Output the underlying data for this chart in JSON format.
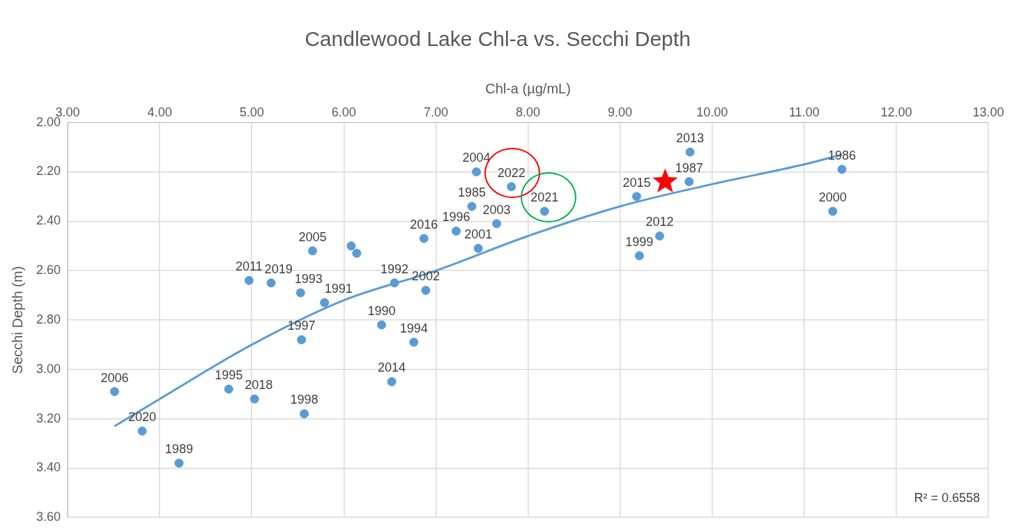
{
  "chart_data": {
    "type": "scatter",
    "title": "Candlewood Lake Chl-a vs. Secchi Depth",
    "xlabel": "Chl-a (µg/mL)",
    "ylabel": "Secchi Depth (m)",
    "xlim": [
      3,
      13
    ],
    "xticks": [
      {
        "value": 3,
        "label": "3.00"
      },
      {
        "value": 4,
        "label": "4.00"
      },
      {
        "value": 5,
        "label": "5.00"
      },
      {
        "value": 6,
        "label": "6.00"
      },
      {
        "value": 7,
        "label": "7.00"
      },
      {
        "value": 8,
        "label": "8.00"
      },
      {
        "value": 9,
        "label": "9.00"
      },
      {
        "value": 10,
        "label": "10.00"
      },
      {
        "value": 11,
        "label": "11.00"
      },
      {
        "value": 12,
        "label": "12.00"
      },
      {
        "value": 13,
        "label": "13.00"
      }
    ],
    "ylim": [
      3.6,
      2
    ],
    "yticks": [
      {
        "value": 2,
        "label": "2.00"
      },
      {
        "value": 2.2,
        "label": "2.20"
      },
      {
        "value": 2.4,
        "label": "2.40"
      },
      {
        "value": 2.6,
        "label": "2.60"
      },
      {
        "value": 2.8,
        "label": "2.80"
      },
      {
        "value": 3,
        "label": "3.00"
      },
      {
        "value": 3.2,
        "label": "3.20"
      },
      {
        "value": 3.4,
        "label": "3.40"
      },
      {
        "value": 3.6,
        "label": "3.60"
      }
    ],
    "grid": true,
    "marker": "circle",
    "annotations": [
      "R² = 0.6558",
      {
        "text": "2006",
        "x": 3.51,
        "y": 3.09
      },
      {
        "text": "2020",
        "x": 3.81,
        "y": 3.25
      },
      {
        "text": "1989",
        "x": 4.21,
        "y": 3.38
      },
      {
        "text": "1995",
        "x": 4.75,
        "y": 3.08
      },
      {
        "text": "2018",
        "x": 5.03,
        "y": 3.12
      },
      {
        "text": "1998",
        "x": 5.57,
        "y": 3.18
      },
      {
        "text": "1997",
        "x": 5.54,
        "y": 2.88
      },
      {
        "text": "2011",
        "x": 4.97,
        "y": 2.64
      },
      {
        "text": "2019",
        "x": 5.21,
        "y": 2.65
      },
      {
        "text": "1993",
        "x": 5.53,
        "y": 2.69
      },
      {
        "text": "1991",
        "x": 5.79,
        "y": 2.73
      },
      {
        "text": "2005",
        "x": 5.66,
        "y": 2.52
      },
      {
        "text": "1992",
        "x": 6.55,
        "y": 2.65
      },
      {
        "text": "2002",
        "x": 6.89,
        "y": 2.68
      },
      {
        "text": "1990",
        "x": 6.41,
        "y": 2.82
      },
      {
        "text": "1994",
        "x": 6.76,
        "y": 2.89
      },
      {
        "text": "2014",
        "x": 6.52,
        "y": 3.05
      },
      {
        "text": "2016",
        "x": 6.87,
        "y": 2.47
      },
      {
        "text": "1996",
        "x": 7.22,
        "y": 2.44
      },
      {
        "text": "1985",
        "x": 7.39,
        "y": 2.34
      },
      {
        "text": "2001",
        "x": 7.46,
        "y": 2.51
      },
      {
        "text": "2003",
        "x": 7.66,
        "y": 2.41
      },
      {
        "text": "2004",
        "x": 7.44,
        "y": 2.2
      },
      {
        "text": "2022",
        "x": 7.82,
        "y": 2.26
      },
      {
        "text": "2021",
        "x": 8.18,
        "y": 2.36
      },
      {
        "text": "2015",
        "x": 9.18,
        "y": 2.3
      },
      {
        "text": "1999",
        "x": 9.21,
        "y": 2.54
      },
      {
        "text": "2012",
        "x": 9.43,
        "y": 2.46
      },
      {
        "text": "1987",
        "x": 9.75,
        "y": 2.24
      },
      {
        "text": "2013",
        "x": 9.76,
        "y": 2.12
      },
      {
        "text": "2000",
        "x": 11.31,
        "y": 2.36
      },
      {
        "text": "1986",
        "x": 11.41,
        "y": 2.19
      }
    ],
    "series": [
      {
        "color": "#5b9bd5",
        "x": [
          3.51,
          3.81,
          4.21,
          4.75,
          5.03,
          5.57,
          5.54,
          4.97,
          5.21,
          5.53,
          5.79,
          5.66,
          6.08,
          6.14,
          6.55,
          6.89,
          6.41,
          6.76,
          6.52,
          6.87,
          7.22,
          7.39,
          7.46,
          7.66,
          7.44,
          7.82,
          8.18,
          9.18,
          9.21,
          9.43,
          9.75,
          9.76,
          11.31,
          11.41
        ],
        "values": [
          3.09,
          3.25,
          3.38,
          3.08,
          3.12,
          3.18,
          2.88,
          2.64,
          2.65,
          2.69,
          2.73,
          2.52,
          2.5,
          2.53,
          2.65,
          2.68,
          2.82,
          2.89,
          3.05,
          2.47,
          2.44,
          2.34,
          2.51,
          2.41,
          2.2,
          2.26,
          2.36,
          2.3,
          2.54,
          2.46,
          2.24,
          2.12,
          2.36,
          2.19
        ]
      },
      {
        "color": "#ff0000",
        "marker": "star",
        "x": [
          9.49
        ],
        "values": [
          2.24
        ]
      },
      {
        "type": "line",
        "color": "#5b9bd5",
        "marker": "none",
        "x": [
          3.51,
          4,
          5,
          6,
          7,
          8,
          9,
          10,
          11,
          11.41
        ],
        "values": [
          3.23,
          3.12,
          2.9,
          2.72,
          2.6,
          2.46,
          2.34,
          2.25,
          2.17,
          2.13
        ]
      }
    ]
  }
}
